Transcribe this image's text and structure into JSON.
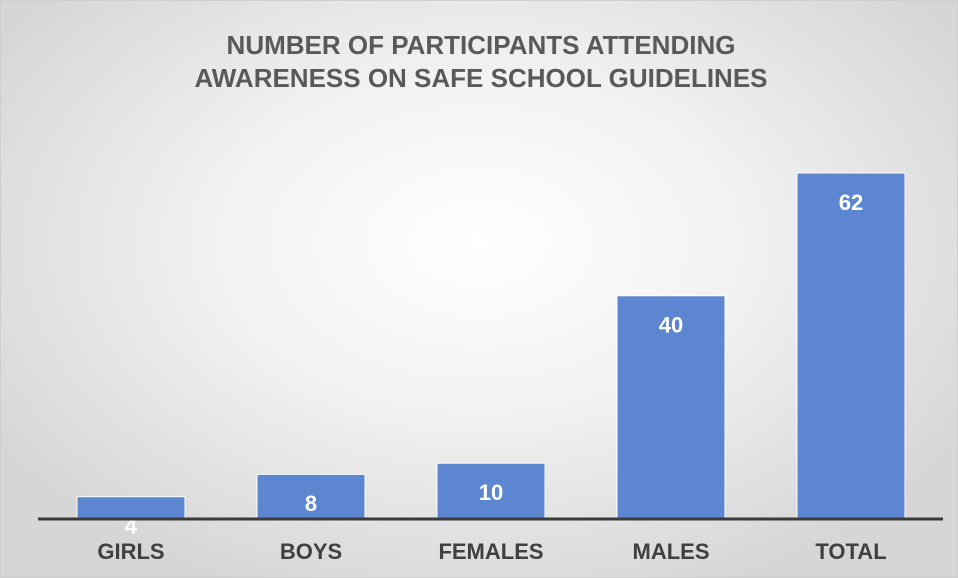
{
  "chart_data": {
    "type": "bar",
    "title": "NUMBER OF PARTICIPANTS ATTENDING AWARENESS ON SAFE SCHOOL GUIDELINES",
    "categories": [
      "GIRLS",
      "BOYS",
      "FEMALES",
      "MALES",
      "TOTAL"
    ],
    "values": [
      4,
      8,
      10,
      40,
      62
    ],
    "color": "#5d86d1"
  }
}
